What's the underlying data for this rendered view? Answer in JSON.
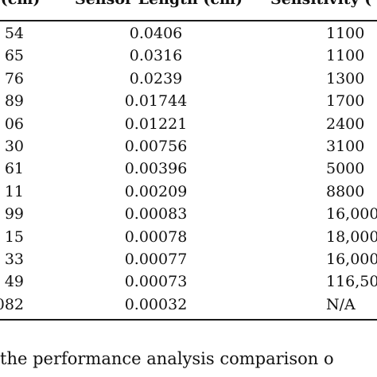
{
  "table": {
    "headers": {
      "col1": "e (cm)",
      "col2": "Sensor Length (cm)",
      "col3": "Sensitivity ("
    },
    "rows": [
      {
        "col1": "54",
        "col2": "0.0406",
        "col3": "1100"
      },
      {
        "col1": "65",
        "col2": "0.0316",
        "col3": "1100"
      },
      {
        "col1": "76",
        "col2": "0.0239",
        "col3": "1300"
      },
      {
        "col1": "89",
        "col2": "0.01744",
        "col3": "1700"
      },
      {
        "col1": "06",
        "col2": "0.01221",
        "col3": "2400"
      },
      {
        "col1": "30",
        "col2": "0.00756",
        "col3": "3100"
      },
      {
        "col1": "61",
        "col2": "0.00396",
        "col3": "5000"
      },
      {
        "col1": "11",
        "col2": "0.00209",
        "col3": "8800"
      },
      {
        "col1": "99",
        "col2": "0.00083",
        "col3": "16,000"
      },
      {
        "col1": "15",
        "col2": "0.00078",
        "col3": "18,000"
      },
      {
        "col1": "33",
        "col2": "0.00077",
        "col3": "16,000"
      },
      {
        "col1": "49",
        "col2": "0.00073",
        "col3": "116,50"
      },
      {
        "col1": "082",
        "col2": "0.00032",
        "col3": "N/A"
      }
    ]
  },
  "caption": "the performance analysis comparison o"
}
